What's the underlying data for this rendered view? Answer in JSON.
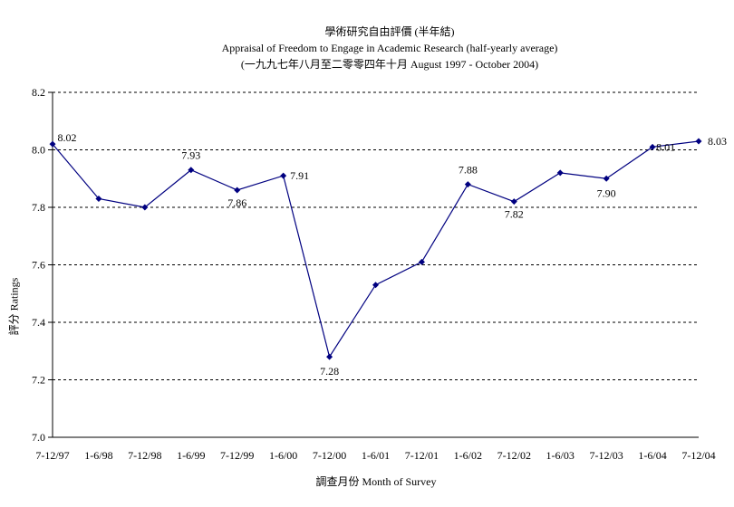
{
  "chart_data": {
    "type": "line",
    "title": "學術研究自由評價 (半年結)",
    "subtitle": "Appraisal of Freedom to Engage in Academic Research (half-yearly average)",
    "subtitle2": "(一九九七年八月至二零零四年十月 August 1997 - October 2004)",
    "xlabel": "調查月份 Month of Survey",
    "ylabel": "評分 Ratings",
    "categories": [
      "7-12/97",
      "1-6/98",
      "7-12/98",
      "1-6/99",
      "7-12/99",
      "1-6/00",
      "7-12/00",
      "1-6/01",
      "7-12/01",
      "1-6/02",
      "7-12/02",
      "1-6/03",
      "7-12/03",
      "1-6/04",
      "7-12/04"
    ],
    "values": [
      8.02,
      7.83,
      7.8,
      7.93,
      7.86,
      7.91,
      7.28,
      7.53,
      7.61,
      7.88,
      7.82,
      7.92,
      7.9,
      8.01,
      8.03
    ],
    "data_labels": [
      "8.02",
      "",
      "",
      "7.93",
      "7.86",
      "7.91",
      "7.28",
      "",
      "",
      "7.88",
      "7.82",
      "",
      "7.90",
      "8.01",
      "8.03"
    ],
    "yticks": [
      "7.0",
      "7.2",
      "7.4",
      "7.6",
      "7.8",
      "8.0",
      "8.2"
    ],
    "ylim": [
      7.0,
      8.2
    ],
    "grid": true,
    "line_color": "#000080"
  }
}
